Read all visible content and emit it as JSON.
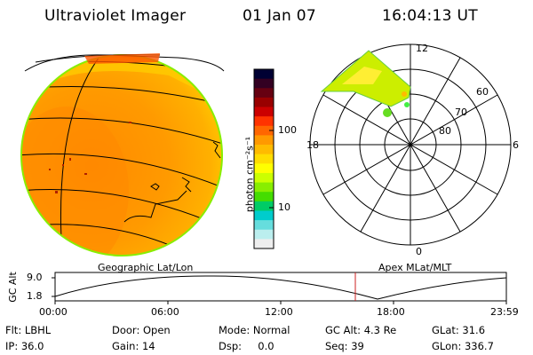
{
  "header": {
    "instrument": "Ultraviolet Imager",
    "date": "01 Jan 07",
    "time": "16:04:13 UT"
  },
  "colorbar": {
    "unit_label": "photon cm⁻²s⁻¹",
    "ticks": [
      "100",
      "10"
    ],
    "colors": [
      "#000033",
      "#330022",
      "#660011",
      "#990000",
      "#cc0000",
      "#ff3300",
      "#ff6600",
      "#ff9900",
      "#ffbb00",
      "#ffdd00",
      "#ffff00",
      "#ccff00",
      "#88ee00",
      "#44dd00",
      "#00cc66",
      "#00cccc",
      "#66dddd",
      "#bbeeee",
      "#eeeeee"
    ]
  },
  "polar_plot": {
    "labels": {
      "top": "12",
      "bottom": "0",
      "left": "18",
      "right": "6",
      "r60": "60",
      "r70": "70",
      "r80": "80"
    }
  },
  "globe_label": "Geographic Lat/Lon",
  "polar_label": "Apex  MLat/MLT",
  "altitude_plot": {
    "ylabel": "GC Alt",
    "yticks": [
      "9.0",
      "1.8"
    ],
    "xticks": [
      "00:00",
      "06:00",
      "12:00",
      "18:00",
      "23:59"
    ],
    "marker_time": "16:04"
  },
  "status": {
    "filter": "Flt: LBHL",
    "door": "Door: Open",
    "mode": "Mode: Normal",
    "gc_alt": "GC Alt: 4.3 Re",
    "glat": "GLat:  31.6",
    "ip": "IP: 36.0",
    "gain": "Gain: 14",
    "dsp": "Dsp:     0.0",
    "seq": "Seq: 39",
    "glon": "GLon: 336.7"
  }
}
